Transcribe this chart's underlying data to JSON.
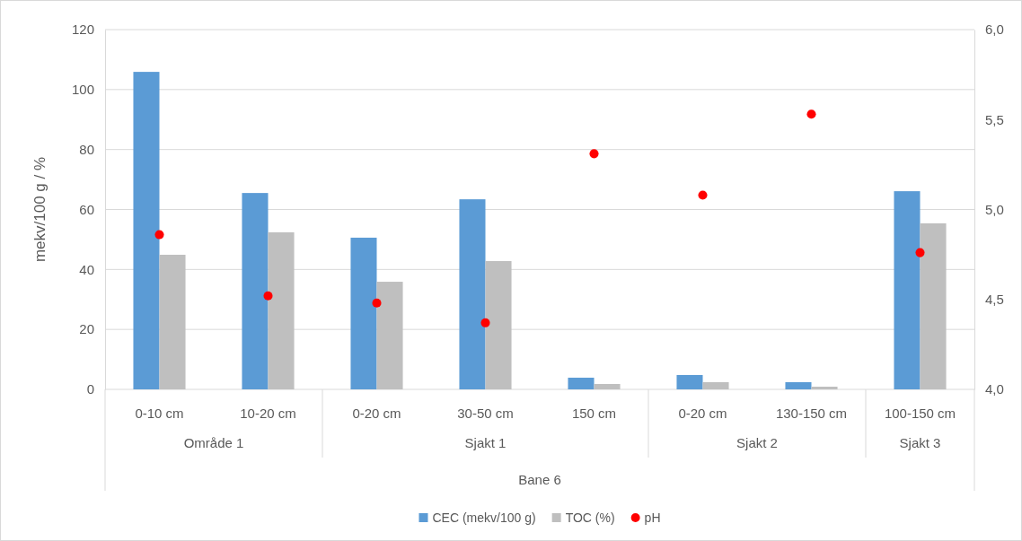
{
  "chart_data": {
    "type": "bar",
    "ylabel": "mekv/100 g  / %",
    "categories": [
      "0-10 cm",
      "10-20 cm",
      "0-20 cm",
      "30-50 cm",
      "150 cm",
      "0-20 cm",
      "130-150 cm",
      "100-150 cm"
    ],
    "series": [
      {
        "name": "CEC (mekv/100 g)",
        "color": "#5b9bd5",
        "values": [
          105.9,
          65.5,
          50.6,
          63.4,
          3.9,
          4.8,
          2.4,
          66.1
        ]
      },
      {
        "name": "TOC (%)",
        "color": "#bfbfbf",
        "values": [
          44.9,
          52.4,
          35.9,
          42.8,
          1.8,
          2.4,
          0.9,
          55.4
        ]
      },
      {
        "name": "pH",
        "type": "scatter",
        "axis": "y2",
        "color": "#ff0000",
        "marker": "circle",
        "values": [
          4.86,
          4.52,
          4.48,
          4.37,
          5.31,
          5.08,
          5.53,
          4.76
        ]
      }
    ],
    "ylim": [
      0,
      120
    ],
    "yticks": [
      0,
      20,
      40,
      60,
      80,
      100,
      120
    ],
    "y2lim": [
      4,
      6
    ],
    "y2ticks": [
      {
        "value": 4,
        "label": "4,0"
      },
      {
        "value": 4.5,
        "label": "4,5"
      },
      {
        "value": 5,
        "label": "5,0"
      },
      {
        "value": 5.5,
        "label": "5,5"
      },
      {
        "value": 6,
        "label": "6,0"
      }
    ],
    "annotations": [
      "Område 1",
      "Sjakt 1",
      "Sjakt 2",
      "Sjakt 3",
      "Bane 6"
    ],
    "grid": "y",
    "legend": "bottom"
  }
}
